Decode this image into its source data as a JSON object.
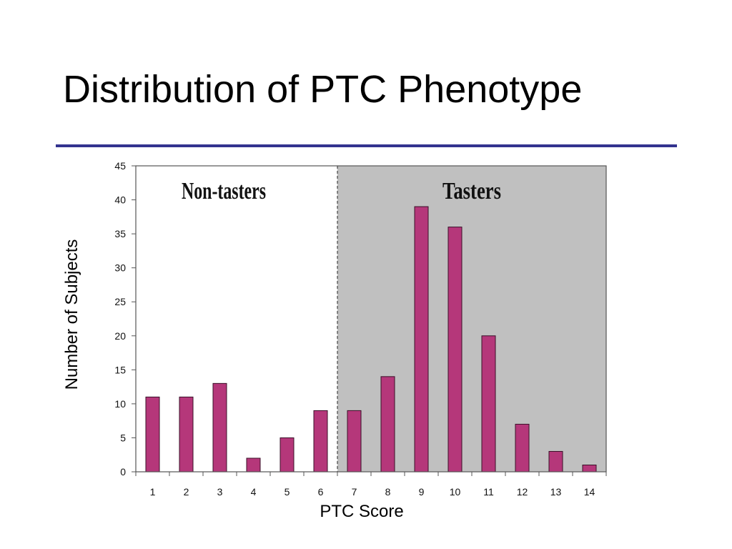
{
  "slide": {
    "title": "Distribution of PTC Phenotype"
  },
  "colors": {
    "bar_fill": "#b5377a",
    "bar_stroke": "#3a1028",
    "taster_region": "#c0c0c0",
    "non_taster_region": "#ffffff",
    "title_rule": "#33338f"
  },
  "chart_data": {
    "type": "bar",
    "xlabel": "PTC Score",
    "ylabel": "Number of Subjects",
    "categories": [
      "1",
      "2",
      "3",
      "4",
      "5",
      "6",
      "7",
      "8",
      "9",
      "10",
      "11",
      "12",
      "13",
      "14"
    ],
    "values": [
      11,
      11,
      13,
      2,
      5,
      9,
      9,
      14,
      39,
      36,
      20,
      7,
      3,
      1
    ],
    "ylim": [
      0,
      45
    ],
    "yticks": [
      0,
      5,
      10,
      15,
      20,
      25,
      30,
      35,
      40,
      45
    ],
    "grid": false,
    "regions": [
      {
        "label": "Non-tasters",
        "from": 1,
        "to": 6
      },
      {
        "label": "Tasters",
        "from": 7,
        "to": 14
      }
    ],
    "threshold_line": {
      "between": [
        6,
        7
      ],
      "style": "dashed"
    }
  }
}
